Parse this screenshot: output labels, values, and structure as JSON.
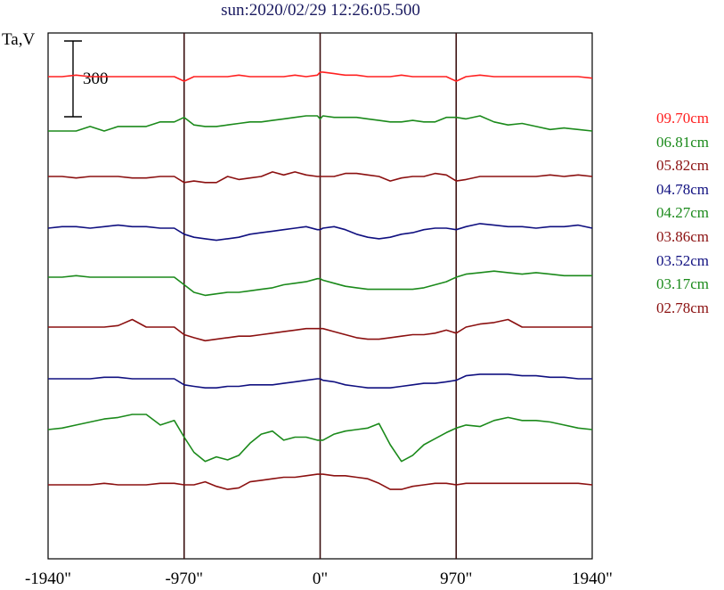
{
  "chart_data": {
    "type": "line",
    "title": "sun:2020/02/29 12:26:05.500",
    "ylabel": "Ta,V",
    "scale_bar_label": "300",
    "scale_bar_value": 300,
    "xlim": [
      -1940,
      1940
    ],
    "x_ticks": [
      -1940,
      -970,
      0,
      970,
      1940
    ],
    "x_tick_labels": [
      "-1940\"",
      "-970\"",
      "0\"",
      "970\"",
      "1940\""
    ],
    "vertical_lines": [
      -970,
      0,
      970
    ],
    "colors": {
      "red": "#ff2020",
      "green": "#1b8a1b",
      "darkred": "#8b1010",
      "navy": "#101080",
      "axis": "#000000",
      "vline": "#3a1010"
    },
    "legend": [
      {
        "label": "09.70cm",
        "color": "#ff2020"
      },
      {
        "label": "06.81cm",
        "color": "#1b8a1b"
      },
      {
        "label": "05.82cm",
        "color": "#8b1010"
      },
      {
        "label": "04.78cm",
        "color": "#101080"
      },
      {
        "label": "04.27cm",
        "color": "#1b8a1b"
      },
      {
        "label": "03.86cm",
        "color": "#8b1010"
      },
      {
        "label": "03.52cm",
        "color": "#101080"
      },
      {
        "label": "03.17cm",
        "color": "#1b8a1b"
      },
      {
        "label": "02.78cm",
        "color": "#8b1010"
      }
    ],
    "x": [
      -1940,
      -1840,
      -1740,
      -1640,
      -1540,
      -1440,
      -1340,
      -1240,
      -1140,
      -1040,
      -970,
      -900,
      -820,
      -740,
      -660,
      -580,
      -500,
      -420,
      -340,
      -260,
      -180,
      -100,
      -20,
      0,
      20,
      100,
      180,
      260,
      340,
      420,
      500,
      580,
      660,
      740,
      820,
      900,
      970,
      1040,
      1140,
      1240,
      1340,
      1440,
      1540,
      1640,
      1740,
      1840,
      1940
    ],
    "series": [
      {
        "name": "09.70cm",
        "color": "#ff2020",
        "values": [
          0,
          0,
          2,
          0,
          0,
          0,
          0,
          0,
          0,
          0,
          -6,
          0,
          0,
          0,
          0,
          2,
          0,
          0,
          0,
          0,
          2,
          0,
          2,
          6,
          6,
          4,
          2,
          2,
          0,
          0,
          0,
          2,
          0,
          0,
          0,
          0,
          -6,
          0,
          2,
          0,
          0,
          0,
          0,
          0,
          0,
          0,
          -2
        ]
      },
      {
        "name": "06.81cm",
        "color": "#1b8a1b",
        "values": [
          0,
          0,
          0,
          6,
          0,
          6,
          6,
          6,
          12,
          12,
          18,
          8,
          6,
          6,
          8,
          10,
          12,
          12,
          14,
          16,
          18,
          20,
          20,
          16,
          20,
          18,
          18,
          18,
          16,
          14,
          12,
          12,
          14,
          12,
          12,
          18,
          18,
          16,
          20,
          12,
          8,
          10,
          6,
          2,
          4,
          2,
          0
        ]
      },
      {
        "name": "05.82cm",
        "color": "#8b1010",
        "values": [
          0,
          0,
          -2,
          0,
          0,
          0,
          -2,
          -2,
          0,
          0,
          -8,
          -6,
          -8,
          -8,
          0,
          -4,
          -2,
          0,
          6,
          2,
          6,
          2,
          0,
          0,
          0,
          0,
          4,
          4,
          2,
          0,
          -6,
          -2,
          0,
          0,
          4,
          2,
          -6,
          -4,
          0,
          0,
          0,
          0,
          0,
          2,
          0,
          2,
          0
        ]
      },
      {
        "name": "04.78cm",
        "color": "#101080",
        "values": [
          0,
          2,
          2,
          0,
          2,
          4,
          2,
          2,
          0,
          0,
          -8,
          -12,
          -14,
          -16,
          -14,
          -12,
          -8,
          -6,
          -4,
          -2,
          0,
          2,
          -2,
          -2,
          0,
          2,
          -2,
          -8,
          -12,
          -14,
          -12,
          -8,
          -6,
          -2,
          0,
          0,
          -2,
          2,
          6,
          4,
          2,
          2,
          0,
          2,
          2,
          4,
          0
        ]
      },
      {
        "name": "04.27cm",
        "color": "#1b8a1b",
        "values": [
          0,
          0,
          2,
          0,
          0,
          0,
          0,
          0,
          0,
          0,
          -10,
          -20,
          -24,
          -22,
          -20,
          -20,
          -18,
          -16,
          -14,
          -10,
          -8,
          -6,
          -2,
          -2,
          -4,
          -8,
          -12,
          -14,
          -16,
          -16,
          -16,
          -16,
          -16,
          -14,
          -10,
          -6,
          0,
          4,
          6,
          8,
          6,
          4,
          6,
          4,
          2,
          2,
          2
        ]
      },
      {
        "name": "03.86cm",
        "color": "#8b1010",
        "values": [
          0,
          0,
          0,
          0,
          0,
          2,
          10,
          0,
          0,
          0,
          -10,
          -14,
          -18,
          -16,
          -14,
          -12,
          -12,
          -10,
          -8,
          -6,
          -4,
          -2,
          -2,
          -2,
          -2,
          -6,
          -10,
          -14,
          -16,
          -16,
          -14,
          -12,
          -10,
          -10,
          -8,
          -4,
          -8,
          0,
          4,
          6,
          10,
          0,
          0,
          0,
          0,
          0,
          0
        ]
      },
      {
        "name": "03.52cm",
        "color": "#101080",
        "values": [
          0,
          0,
          0,
          0,
          2,
          2,
          0,
          0,
          0,
          0,
          -8,
          -10,
          -12,
          -12,
          -10,
          -10,
          -8,
          -8,
          -8,
          -6,
          -4,
          -2,
          0,
          0,
          -2,
          -4,
          -8,
          -10,
          -12,
          -12,
          -12,
          -10,
          -8,
          -6,
          -6,
          -4,
          -2,
          4,
          6,
          6,
          6,
          4,
          4,
          2,
          2,
          0,
          0
        ]
      },
      {
        "name": "03.17cm",
        "color": "#1b8a1b",
        "values": [
          0,
          2,
          6,
          10,
          14,
          16,
          20,
          20,
          6,
          12,
          -10,
          -30,
          -42,
          -36,
          -40,
          -34,
          -18,
          -6,
          -2,
          -14,
          -10,
          -10,
          -14,
          -14,
          -14,
          -6,
          -2,
          0,
          2,
          8,
          -20,
          -42,
          -34,
          -20,
          -12,
          -4,
          2,
          6,
          4,
          12,
          16,
          12,
          12,
          10,
          6,
          2,
          0
        ]
      },
      {
        "name": "02.78cm",
        "color": "#8b1010",
        "values": [
          0,
          0,
          0,
          0,
          2,
          0,
          0,
          0,
          2,
          2,
          0,
          0,
          4,
          -2,
          -6,
          -4,
          4,
          6,
          8,
          10,
          10,
          12,
          14,
          14,
          14,
          12,
          12,
          10,
          8,
          2,
          -6,
          -6,
          -2,
          0,
          2,
          2,
          0,
          2,
          2,
          2,
          2,
          2,
          2,
          2,
          2,
          2,
          0
        ]
      }
    ]
  }
}
